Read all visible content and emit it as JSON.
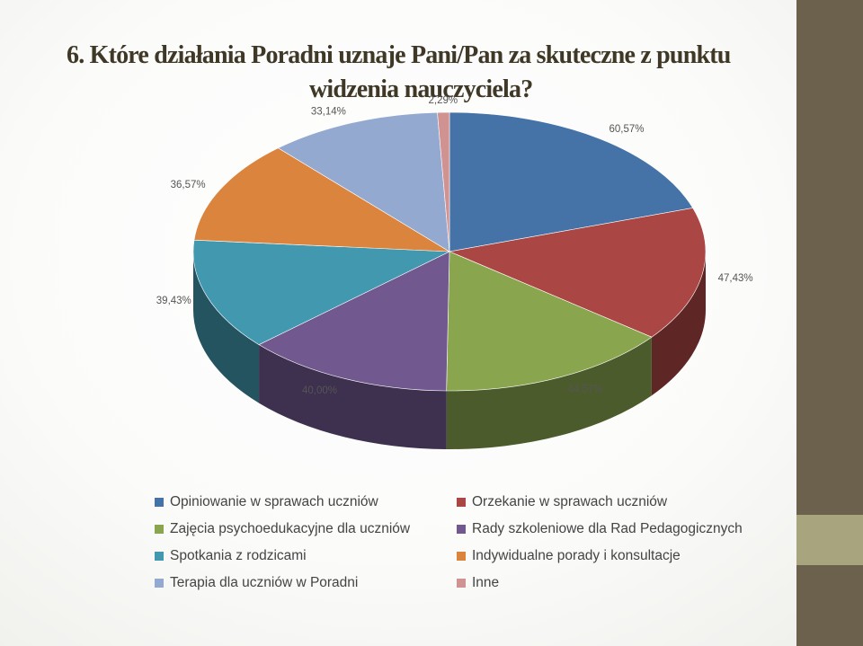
{
  "title": {
    "line1": "6. Które działania Poradni uznaje Pani/Pan za skuteczne z punktu",
    "line2": "widzenia nauczyciela?"
  },
  "colors": {
    "sidebar": "#6c614c",
    "sidebar_accent": "#a8a47e"
  },
  "chart_data": {
    "type": "pie",
    "style": "3d-exploded",
    "unit": "%",
    "legend_position": "bottom",
    "slices": [
      {
        "label": "Opiniowanie w sprawach uczniów",
        "value": 60.57,
        "display": "60,57%",
        "color": "#4572a7"
      },
      {
        "label": "Orzekanie w sprawach uczniów",
        "value": 47.43,
        "display": "47,43%",
        "color": "#aa4643"
      },
      {
        "label": "Zajęcia psychoedukacyjne dla uczniów",
        "value": 44.57,
        "display": "44,57%",
        "color": "#89a54e"
      },
      {
        "label": "Rady szkoleniowe dla Rad Pedagogicznych",
        "value": 40.0,
        "display": "40,00%",
        "color": "#71588f"
      },
      {
        "label": "Spotkania z rodzicami",
        "value": 39.43,
        "display": "39,43%",
        "color": "#4198af"
      },
      {
        "label": "Indywidualne porady i konsultacje",
        "value": 36.57,
        "display": "36,57%",
        "color": "#db843d"
      },
      {
        "label": "Terapia dla uczniów w Poradni",
        "value": 33.14,
        "display": "33,14%",
        "color": "#93a9cf"
      },
      {
        "label": "Inne",
        "value": 2.29,
        "display": "2,29%",
        "color": "#d19392"
      }
    ]
  }
}
